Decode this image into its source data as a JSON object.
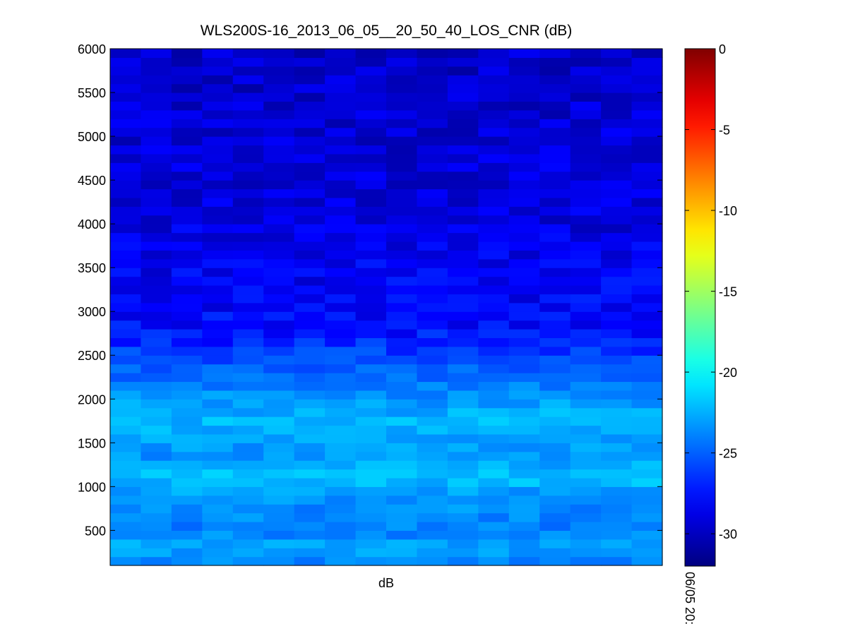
{
  "chart_data": {
    "type": "heatmap",
    "title": "WLS200S-16_2013_06_05__20_50_40_LOS_CNR (dB)",
    "xlabel": "dB",
    "ylabel": "",
    "yticks": [
      500,
      1000,
      1500,
      2000,
      2500,
      3000,
      3500,
      4000,
      4500,
      5000,
      5500,
      6000
    ],
    "ylim": [
      100,
      6000
    ],
    "columns": 18,
    "row_count": 59,
    "row_step": 100,
    "colorbar": {
      "colormap": "jet",
      "clim": [
        -32,
        0
      ],
      "ticks": [
        0,
        -5,
        -10,
        -15,
        -20,
        -25,
        -30
      ],
      "bottom_label": "06/05 20:"
    },
    "profile": {
      "altitudes": [
        100,
        200,
        300,
        500,
        700,
        900,
        1000,
        1100,
        1200,
        1300,
        1500,
        1700,
        1800,
        2000,
        2200,
        2400,
        2600,
        2800,
        3000,
        3500,
        4000,
        4500,
        5000,
        5500,
        6000
      ],
      "mean_cnr": [
        -24.2,
        -23.6,
        -22.6,
        -24.0,
        -23.7,
        -23.3,
        -22.6,
        -22.0,
        -21.8,
        -23.5,
        -23.0,
        -22.3,
        -22.4,
        -23.3,
        -24.2,
        -25.3,
        -26.6,
        -27.6,
        -28.0,
        -28.4,
        -28.9,
        -29.1,
        -29.3,
        -29.5,
        -29.6
      ]
    },
    "grid": false
  }
}
